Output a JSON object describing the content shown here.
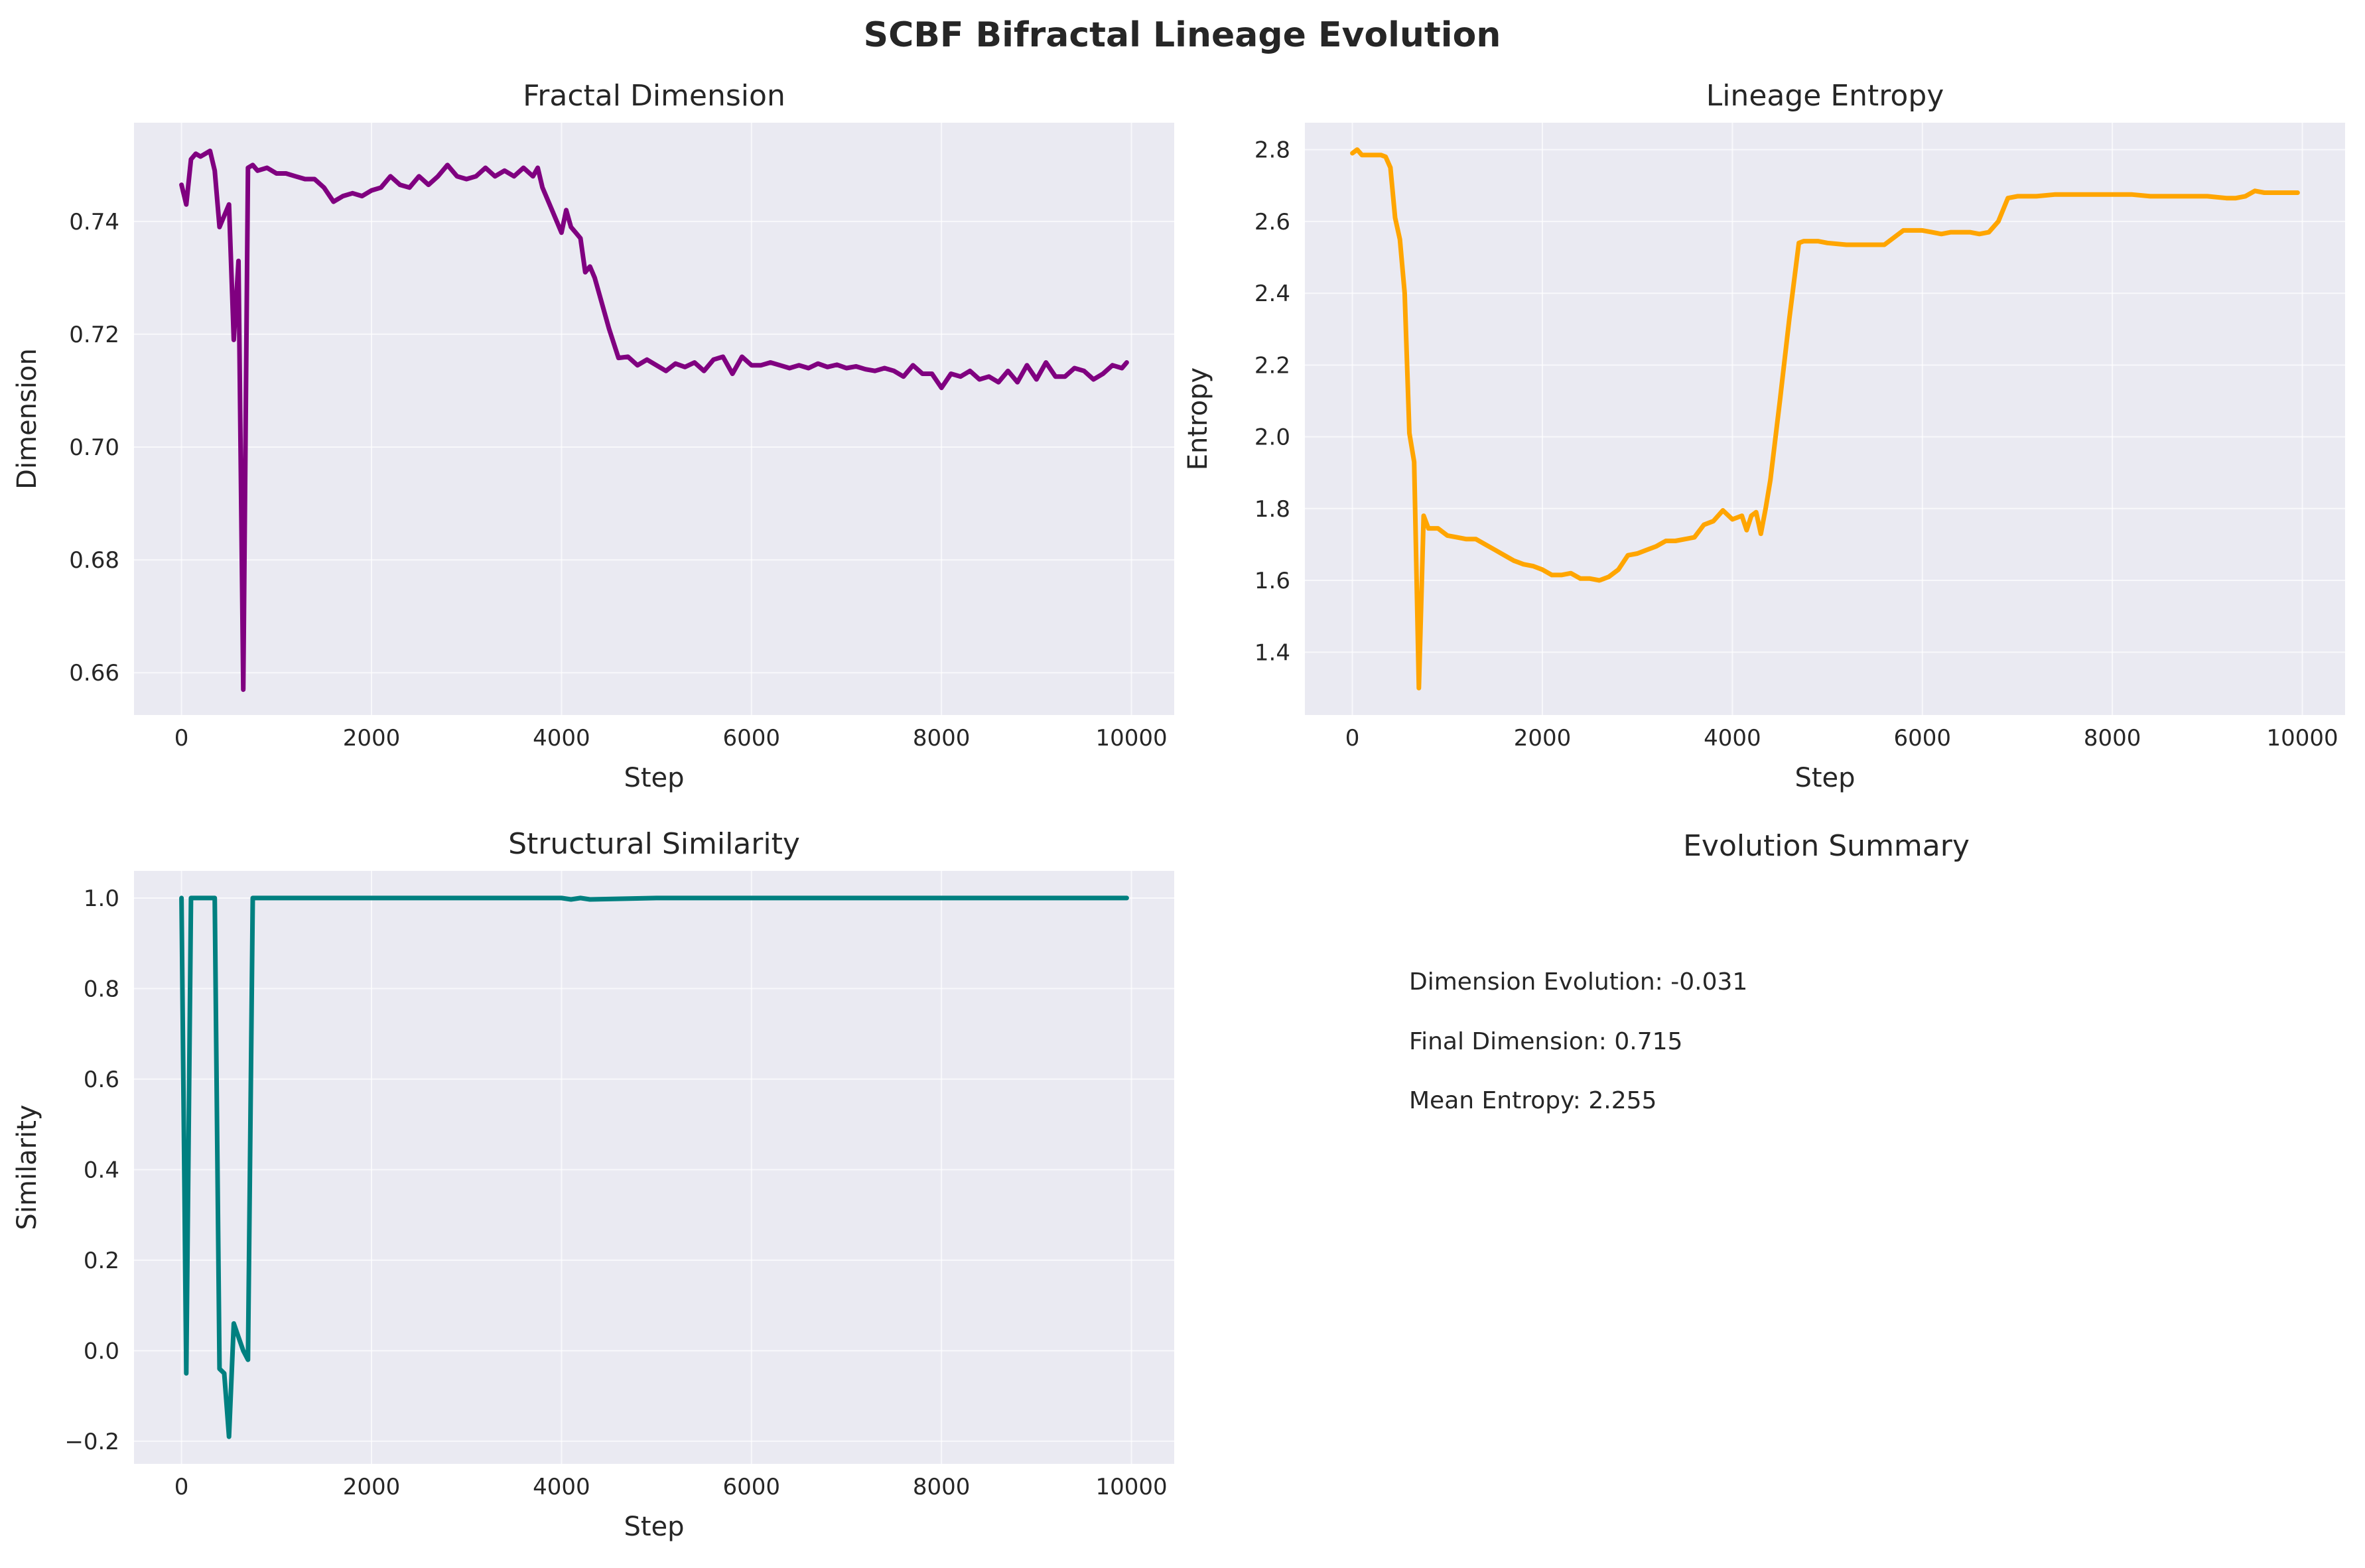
{
  "figure": {
    "suptitle": "SCBF Bifractal Lineage Evolution"
  },
  "summary": {
    "title": "Evolution Summary",
    "lines": [
      "Dimension Evolution: -0.031",
      "Final Dimension: 0.715",
      "Mean Entropy: 2.255"
    ]
  },
  "chart_data": [
    {
      "type": "line",
      "title": "Fractal Dimension",
      "xlabel": "Step",
      "ylabel": "Dimension",
      "xlim": [
        -500,
        10450
      ],
      "ylim": [
        0.6525,
        0.7575
      ],
      "xticks": [
        0,
        2000,
        4000,
        6000,
        8000,
        10000
      ],
      "yticks": [
        0.66,
        0.68,
        0.7,
        0.72,
        0.74
      ],
      "ytick_labels": [
        "0.66",
        "0.68",
        "0.70",
        "0.72",
        "0.74"
      ],
      "grid": true,
      "color": "#800080",
      "x": [
        0,
        50,
        100,
        150,
        200,
        250,
        300,
        350,
        400,
        450,
        500,
        550,
        600,
        650,
        700,
        750,
        800,
        900,
        1000,
        1100,
        1200,
        1300,
        1400,
        1500,
        1600,
        1700,
        1800,
        1900,
        2000,
        2100,
        2200,
        2300,
        2400,
        2500,
        2600,
        2700,
        2800,
        2900,
        3000,
        3100,
        3200,
        3300,
        3400,
        3500,
        3600,
        3700,
        3750,
        3800,
        3900,
        4000,
        4050,
        4100,
        4150,
        4200,
        4250,
        4300,
        4350,
        4400,
        4500,
        4600,
        4700,
        4800,
        4900,
        5000,
        5100,
        5200,
        5300,
        5400,
        5500,
        5600,
        5700,
        5800,
        5900,
        6000,
        6100,
        6200,
        6300,
        6400,
        6500,
        6600,
        6700,
        6800,
        6900,
        7000,
        7100,
        7200,
        7300,
        7400,
        7500,
        7600,
        7700,
        7800,
        7900,
        8000,
        8100,
        8200,
        8300,
        8400,
        8500,
        8600,
        8700,
        8800,
        8900,
        9000,
        9100,
        9200,
        9300,
        9400,
        9500,
        9600,
        9700,
        9800,
        9900,
        9950
      ],
      "y": [
        0.7465,
        0.743,
        0.751,
        0.752,
        0.7515,
        0.752,
        0.7525,
        0.749,
        0.739,
        0.741,
        0.743,
        0.719,
        0.733,
        0.657,
        0.7495,
        0.75,
        0.749,
        0.7495,
        0.7485,
        0.7485,
        0.748,
        0.7475,
        0.7475,
        0.746,
        0.7435,
        0.7445,
        0.745,
        0.7445,
        0.7455,
        0.746,
        0.748,
        0.7465,
        0.746,
        0.748,
        0.7465,
        0.748,
        0.75,
        0.748,
        0.7475,
        0.748,
        0.7495,
        0.748,
        0.749,
        0.748,
        0.7495,
        0.748,
        0.7495,
        0.746,
        0.742,
        0.738,
        0.742,
        0.739,
        0.738,
        0.737,
        0.731,
        0.732,
        0.73,
        0.727,
        0.721,
        0.7158,
        0.716,
        0.7145,
        0.7155,
        0.7145,
        0.7135,
        0.7148,
        0.7142,
        0.715,
        0.7135,
        0.7155,
        0.716,
        0.713,
        0.716,
        0.7145,
        0.7145,
        0.715,
        0.7145,
        0.714,
        0.7145,
        0.714,
        0.7148,
        0.7142,
        0.7146,
        0.714,
        0.7143,
        0.7138,
        0.7135,
        0.714,
        0.7135,
        0.7125,
        0.7145,
        0.713,
        0.713,
        0.7105,
        0.713,
        0.7125,
        0.7135,
        0.712,
        0.7125,
        0.7115,
        0.7135,
        0.7115,
        0.7145,
        0.712,
        0.715,
        0.7125,
        0.7125,
        0.714,
        0.7135,
        0.712,
        0.713,
        0.7145,
        0.714,
        0.715
      ]
    },
    {
      "type": "line",
      "title": "Lineage Entropy",
      "xlabel": "Step",
      "ylabel": "Entropy",
      "xlim": [
        -500,
        10450
      ],
      "ylim": [
        1.225,
        2.875
      ],
      "xticks": [
        0,
        2000,
        4000,
        6000,
        8000,
        10000
      ],
      "yticks": [
        1.4,
        1.6,
        1.8,
        2.0,
        2.2,
        2.4,
        2.6,
        2.8
      ],
      "ytick_labels": [
        "1.4",
        "1.6",
        "1.8",
        "2.0",
        "2.2",
        "2.4",
        "2.6",
        "2.8"
      ],
      "grid": true,
      "color": "#ffa500",
      "x": [
        0,
        50,
        100,
        200,
        300,
        350,
        400,
        450,
        500,
        550,
        600,
        650,
        700,
        750,
        800,
        900,
        1000,
        1100,
        1200,
        1300,
        1400,
        1500,
        1600,
        1700,
        1800,
        1900,
        2000,
        2100,
        2200,
        2300,
        2400,
        2500,
        2600,
        2700,
        2800,
        2900,
        3000,
        3100,
        3200,
        3300,
        3400,
        3500,
        3600,
        3700,
        3800,
        3900,
        4000,
        4100,
        4150,
        4200,
        4250,
        4300,
        4350,
        4400,
        4500,
        4600,
        4700,
        4750,
        4800,
        4900,
        5000,
        5200,
        5400,
        5600,
        5800,
        5900,
        6000,
        6100,
        6200,
        6300,
        6400,
        6500,
        6600,
        6700,
        6800,
        6900,
        7000,
        7200,
        7400,
        7600,
        7800,
        8000,
        8200,
        8400,
        8600,
        8800,
        9000,
        9200,
        9300,
        9400,
        9500,
        9600,
        9700,
        9800,
        9950
      ],
      "y": [
        2.79,
        2.8,
        2.785,
        2.785,
        2.785,
        2.78,
        2.75,
        2.61,
        2.55,
        2.4,
        2.01,
        1.93,
        1.3,
        1.78,
        1.745,
        1.745,
        1.725,
        1.72,
        1.715,
        1.715,
        1.7,
        1.685,
        1.67,
        1.655,
        1.645,
        1.64,
        1.63,
        1.615,
        1.615,
        1.62,
        1.605,
        1.605,
        1.6,
        1.61,
        1.63,
        1.67,
        1.675,
        1.685,
        1.695,
        1.71,
        1.71,
        1.715,
        1.72,
        1.755,
        1.765,
        1.795,
        1.77,
        1.78,
        1.74,
        1.78,
        1.79,
        1.73,
        1.8,
        1.88,
        2.1,
        2.33,
        2.54,
        2.545,
        2.545,
        2.545,
        2.54,
        2.535,
        2.535,
        2.535,
        2.575,
        2.575,
        2.575,
        2.57,
        2.565,
        2.57,
        2.57,
        2.57,
        2.565,
        2.57,
        2.6,
        2.665,
        2.67,
        2.67,
        2.675,
        2.675,
        2.675,
        2.675,
        2.675,
        2.67,
        2.67,
        2.67,
        2.67,
        2.665,
        2.665,
        2.67,
        2.685,
        2.68,
        2.68,
        2.68,
        2.68
      ]
    },
    {
      "type": "line",
      "title": "Structural Similarity",
      "xlabel": "Step",
      "ylabel": "Similarity",
      "xlim": [
        -500,
        10450
      ],
      "ylim": [
        -0.25,
        1.06
      ],
      "xticks": [
        0,
        2000,
        4000,
        6000,
        8000,
        10000
      ],
      "yticks": [
        -0.2,
        0.0,
        0.2,
        0.4,
        0.6,
        0.8,
        1.0
      ],
      "ytick_labels": [
        "−0.2",
        "0.0",
        "0.2",
        "0.4",
        "0.6",
        "0.8",
        "1.0"
      ],
      "grid": true,
      "color": "#008080",
      "x": [
        0,
        50,
        100,
        200,
        300,
        350,
        400,
        450,
        500,
        550,
        600,
        650,
        700,
        750,
        800,
        1000,
        2000,
        3000,
        4000,
        4100,
        4200,
        4300,
        5000,
        6000,
        7000,
        8000,
        9000,
        9950
      ],
      "y": [
        1.0,
        -0.05,
        1.0,
        1.0,
        1.0,
        1.0,
        -0.04,
        -0.05,
        -0.19,
        0.06,
        0.03,
        0.0,
        -0.02,
        1.0,
        1.0,
        1.0,
        1.0,
        1.0,
        1.0,
        0.997,
        1.0,
        0.997,
        1.0,
        1.0,
        1.0,
        1.0,
        1.0,
        1.0
      ]
    }
  ]
}
